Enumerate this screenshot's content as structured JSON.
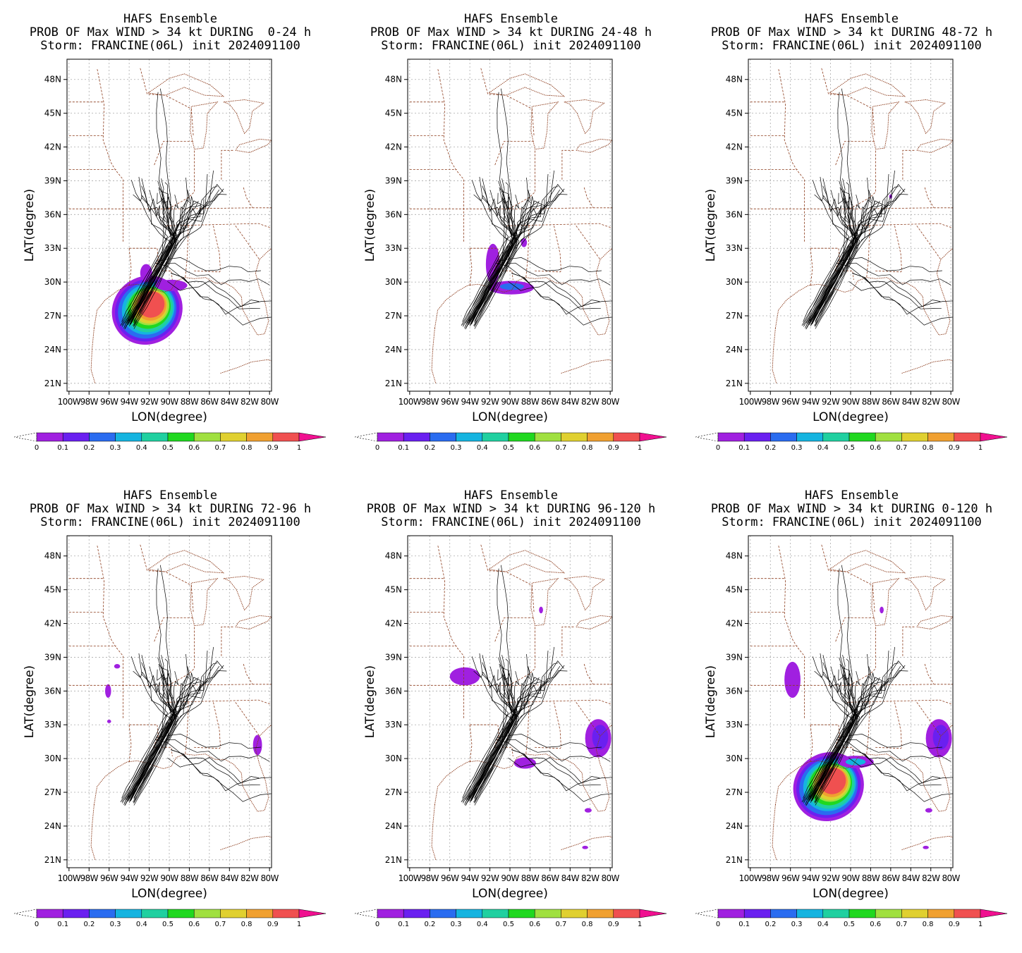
{
  "panels": [
    {
      "id": "p0-24",
      "title": "HAFS Ensemble",
      "subtitle": "PROB OF Max WIND > 34 kt DURING  0-24 h",
      "storm_line": "Storm: FRANCINE(06L) init 2024091100",
      "period": "0-24"
    },
    {
      "id": "p24-48",
      "title": "HAFS Ensemble",
      "subtitle": "PROB OF Max WIND > 34 kt DURING 24-48 h",
      "storm_line": "Storm: FRANCINE(06L) init 2024091100",
      "period": "24-48"
    },
    {
      "id": "p48-72",
      "title": "HAFS Ensemble",
      "subtitle": "PROB OF Max WIND > 34 kt DURING 48-72 h",
      "storm_line": "Storm: FRANCINE(06L) init 2024091100",
      "period": "48-72"
    },
    {
      "id": "p72-96",
      "title": "HAFS Ensemble",
      "subtitle": "PROB OF Max WIND > 34 kt DURING 72-96 h",
      "storm_line": "Storm: FRANCINE(06L) init 2024091100",
      "period": "72-96"
    },
    {
      "id": "p96-120",
      "title": "HAFS Ensemble",
      "subtitle": "PROB OF Max WIND > 34 kt DURING 96-120 h",
      "storm_line": "Storm: FRANCINE(06L) init 2024091100",
      "period": "96-120"
    },
    {
      "id": "p0-120",
      "title": "HAFS Ensemble",
      "subtitle": "PROB OF Max WIND > 34 kt DURING 0-120 h",
      "storm_line": "Storm: FRANCINE(06L) init 2024091100",
      "period": "0-120"
    }
  ],
  "axes": {
    "xlabel": "LON(degree)",
    "ylabel": "LAT(degree)",
    "lat_ticks": [
      "48N",
      "45N",
      "42N",
      "39N",
      "36N",
      "33N",
      "30N",
      "27N",
      "24N",
      "21N"
    ],
    "lat_values": [
      48,
      45,
      42,
      39,
      36,
      33,
      30,
      27,
      24,
      21
    ],
    "lon_ticks": [
      "100W",
      "98W",
      "96W",
      "94W",
      "92W",
      "90W",
      "88W",
      "86W",
      "84W",
      "82W",
      "80W"
    ],
    "lon_values": [
      -100,
      -98,
      -96,
      -94,
      -92,
      -90,
      -88,
      -86,
      -84,
      -82,
      -80
    ],
    "lon_range": [
      -100.2,
      -79.8
    ],
    "lat_range": [
      20.3,
      49.8
    ]
  },
  "colorbar": {
    "labels": [
      "0",
      "0.1",
      "0.2",
      "0.3",
      "0.4",
      "0.5",
      "0.6",
      "0.7",
      "0.8",
      "0.9",
      "1"
    ],
    "colors": [
      "#a020e0",
      "#6a20f0",
      "#2a6cf0",
      "#15b4e0",
      "#20d0a0",
      "#20d820",
      "#a0e040",
      "#e0d030",
      "#f0a030",
      "#f05050"
    ],
    "below_color": "#ffffff",
    "above_color": "#f01090"
  },
  "colors": {
    "track": "#000000",
    "coast": "#8b3a1a",
    "grid": "#aaaaaa"
  }
}
